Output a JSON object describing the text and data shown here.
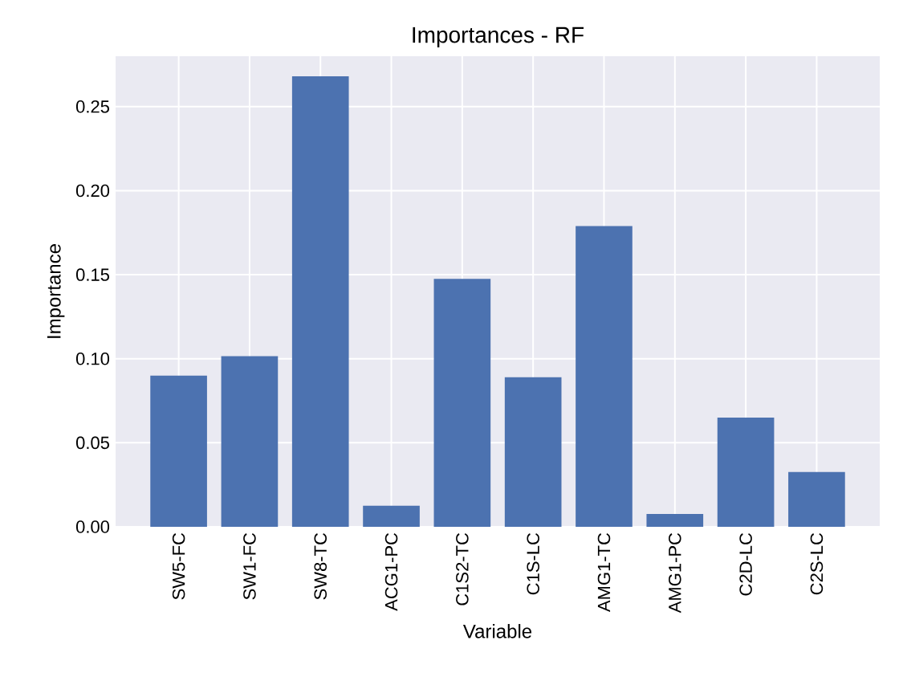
{
  "chart_data": {
    "type": "bar",
    "title": "Importances - RF",
    "xlabel": "Variable",
    "ylabel": "Importance",
    "categories": [
      "SW5-FC",
      "SW1-FC",
      "SW8-TC",
      "ACG1-PC",
      "C1S2-TC",
      "C1S-LC",
      "AMG1-TC",
      "AMG1-PC",
      "C2D-LC",
      "C2S-LC"
    ],
    "values": [
      0.09,
      0.1015,
      0.268,
      0.0125,
      0.1475,
      0.089,
      0.179,
      0.0077,
      0.065,
      0.0326
    ],
    "color": "#4c72b0",
    "ylim": [
      0,
      0.28
    ],
    "yticks": [
      {
        "value": 0,
        "label": "0.00"
      },
      {
        "value": 0.05,
        "label": "0.05"
      },
      {
        "value": 0.1,
        "label": "0.10"
      },
      {
        "value": 0.15,
        "label": "0.15"
      },
      {
        "value": 0.2,
        "label": "0.20"
      },
      {
        "value": 0.25,
        "label": "0.25"
      }
    ],
    "grid": true
  }
}
